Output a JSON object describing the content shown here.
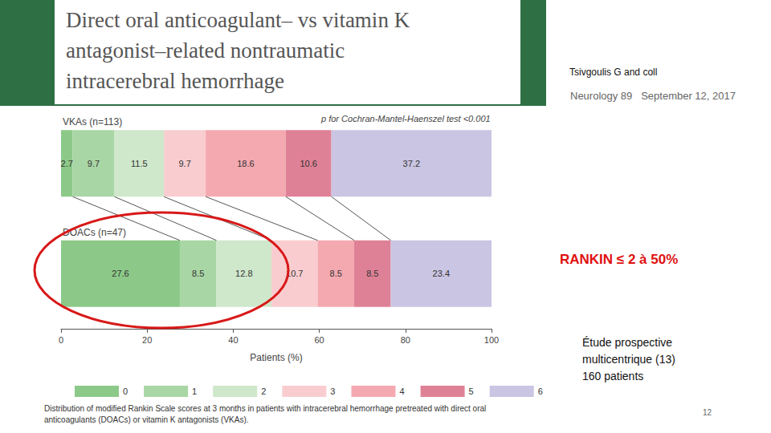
{
  "chart_data": {
    "type": "bar",
    "orientation": "horizontal",
    "stacked": true,
    "data_labels": true,
    "grid": false,
    "legend": "bottom",
    "annotation": "p for Cochran-Mantel-Haenszel test <0.001",
    "xlabel": "Patients (%)",
    "caption": "Distribution of modified Rankin Scale scores at 3 months in patients with intracerebral hemorrhage pretreated with direct oral anticoagulants (DOACs) or vitamin K antagonists (VKAs).",
    "categories": [
      "VKAs (n=113)",
      "DOACs (n=47)"
    ],
    "series": [
      {
        "name": "0",
        "color": "#8cc988",
        "values": [
          2.7,
          27.6
        ]
      },
      {
        "name": "1",
        "color": "#a9d6a5",
        "values": [
          9.7,
          8.5
        ]
      },
      {
        "name": "2",
        "color": "#cfe7cb",
        "values": [
          11.5,
          12.8
        ]
      },
      {
        "name": "3",
        "color": "#f9cdd0",
        "values": [
          9.7,
          10.7
        ]
      },
      {
        "name": "4",
        "color": "#f4a9b0",
        "values": [
          18.6,
          8.5
        ]
      },
      {
        "name": "5",
        "color": "#df8196",
        "values": [
          10.6,
          8.5
        ]
      },
      {
        "name": "6",
        "color": "#cac5e3",
        "values": [
          37.2,
          23.4
        ]
      }
    ],
    "xlim": [
      0,
      100
    ],
    "xticks": [
      0,
      20,
      40,
      60,
      80,
      100
    ]
  },
  "slide": {
    "title": "Direct oral anticoagulant– vs vitamin K\nantagonist–related nontraumatic\nintracerebral hemorrhage",
    "author": "Tsivgoulis G and coll",
    "journal": "Neurology 89   September 12, 2017",
    "highlight": "RANKIN ≤ 2 à 50%",
    "study": "Étude prospective\nmulticentrique (13)\n160 patients",
    "page": "12"
  }
}
